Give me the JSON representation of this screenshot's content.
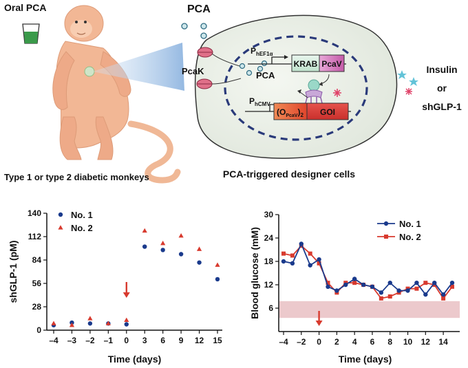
{
  "diagram": {
    "oral_label": "Oral PCA",
    "pca_label": "PCA",
    "pcak_label": "PcaK",
    "pca_inner_label": "PCA",
    "promoter1_main": "P",
    "promoter1_sub": "hEF1α",
    "krab_label": "KRAB",
    "pcav_label": "PcaV",
    "promoter2_main": "P",
    "promoter2_sub": "hCMV",
    "operator_label_open": "(O",
    "operator_label_sub": "PcaV",
    "operator_label_close": ")",
    "operator_label_count": "2",
    "goi_label": "GOI",
    "insulin_label": "Insulin",
    "or_label": "or",
    "shglp1_label": "shGLP-1",
    "monkey_caption": "Type 1 or type 2 diabetic monkeys",
    "cells_caption": "PCA-triggered designer cells"
  },
  "chart_data": [
    {
      "type": "scatter",
      "xlabel": "Time (days)",
      "ylabel": "shGLP-1 (pM)",
      "ylim": [
        0,
        140
      ],
      "yticks": [
        0,
        28,
        56,
        84,
        112,
        140
      ],
      "categories": [
        "–4",
        "–3",
        "–2",
        "–1",
        "0",
        "3",
        "6",
        "9",
        "12",
        "15"
      ],
      "legend": "top-left",
      "series": [
        {
          "name": "No. 1",
          "color": "#1a3a8c",
          "marker": "circle",
          "values": [
            6,
            9,
            8,
            8,
            7,
            100,
            96,
            91,
            81,
            61
          ]
        },
        {
          "name": "No. 2",
          "color": "#d83a2e",
          "marker": "triangle",
          "values": [
            8,
            6,
            14,
            8,
            12,
            119,
            104,
            113,
            97,
            78
          ]
        }
      ],
      "arrow_at": "0",
      "arrow_color": "#d83a2e"
    },
    {
      "type": "line",
      "xlabel": "Time (days)",
      "ylabel": "Blood glucose (mM)",
      "ylim": [
        0,
        30
      ],
      "yticks": [
        6,
        12,
        18,
        24,
        30
      ],
      "xticks": [
        "–4",
        "–2",
        "0",
        "2",
        "4",
        "6",
        "8",
        "10",
        "12",
        "14"
      ],
      "xtick_values": [
        -4,
        -2,
        0,
        2,
        4,
        6,
        8,
        10,
        12,
        14
      ],
      "xlim": [
        -4,
        15
      ],
      "legend": "top-right",
      "normal_range": [
        3.5,
        7.8
      ],
      "normal_range_color": "#ecc9cc",
      "x": [
        -4,
        -3,
        -2,
        -1,
        0,
        1,
        2,
        3,
        4,
        5,
        6,
        7,
        8,
        9,
        10,
        11,
        12,
        13,
        14,
        15
      ],
      "series": [
        {
          "name": "No. 1",
          "color": "#1a3a8c",
          "marker": "circle",
          "values": [
            18,
            17.5,
            22.5,
            17,
            18.5,
            11.5,
            10.5,
            12,
            13.5,
            12,
            11.5,
            10,
            12.5,
            10.5,
            10.5,
            12.5,
            9.5,
            12.5,
            9.5,
            12.5
          ]
        },
        {
          "name": "No. 2",
          "color": "#d83a2e",
          "marker": "square",
          "values": [
            20,
            19.5,
            22,
            20,
            17.5,
            12.5,
            10,
            12.5,
            12.5,
            12,
            11.5,
            8.5,
            9,
            10,
            11,
            11,
            12.5,
            12,
            8.5,
            11.5
          ]
        }
      ],
      "arrow_at": 0,
      "arrow_color": "#d83a2e"
    }
  ]
}
